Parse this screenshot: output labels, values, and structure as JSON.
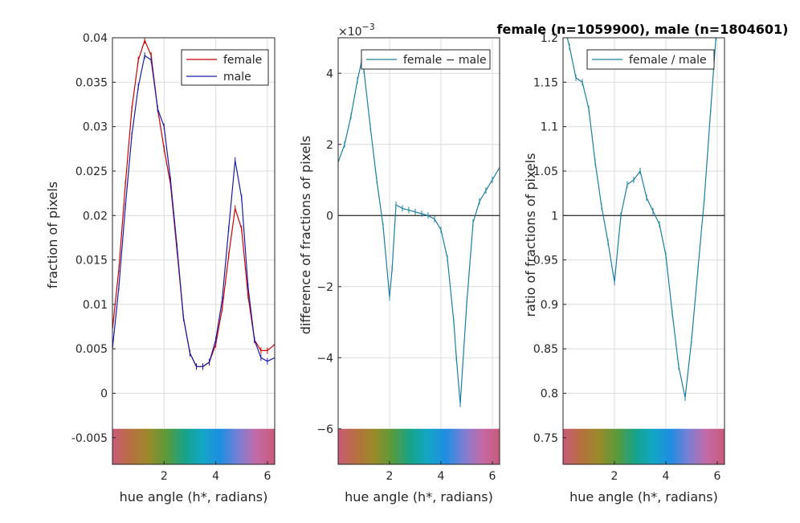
{
  "figure": {
    "title": "female (n=1059900), male (n=1804601)"
  },
  "colors": {
    "female": "#cc0000",
    "male": "#1a1aaa",
    "difference": "#1a7fa0",
    "zero_line": "#000000",
    "grid": "#dcdcdc"
  },
  "hue_strip_colors": [
    "#c95a7a",
    "#b7703f",
    "#9a8a2a",
    "#5b9a3a",
    "#17a387",
    "#13a6c6",
    "#1f8de2",
    "#7b7fd4",
    "#c46aa6",
    "#c95a7a"
  ],
  "chart_data": [
    {
      "type": "line",
      "xlabel": "hue angle (h*, radians)",
      "ylabel": "fraction of pixels",
      "xlim": [
        0,
        6.283
      ],
      "ylim": [
        -0.008,
        0.04
      ],
      "xticks": [
        2,
        4,
        6
      ],
      "xtick_labels": [
        "2",
        "4",
        "6"
      ],
      "yticks": [
        -0.005,
        0,
        0.005,
        0.01,
        0.015,
        0.02,
        0.025,
        0.03,
        0.035,
        0.04
      ],
      "ytick_labels": [
        "-0.005",
        "0",
        "0.005",
        "0.01",
        "0.015",
        "0.02",
        "0.025",
        "0.03",
        "0.035",
        "0.04"
      ],
      "grid": true,
      "legend_position": "top-right",
      "hue_strip_range": [
        -0.008,
        -0.004
      ],
      "x": [
        0.0,
        0.25,
        0.5,
        0.75,
        1.0,
        1.25,
        1.5,
        1.75,
        2.0,
        2.25,
        2.5,
        2.75,
        3.0,
        3.25,
        3.5,
        3.75,
        4.0,
        4.25,
        4.5,
        4.75,
        5.0,
        5.25,
        5.5,
        5.75,
        6.0,
        6.283
      ],
      "series": [
        {
          "name": "female",
          "values": [
            0.0072,
            0.014,
            0.0235,
            0.032,
            0.0375,
            0.0397,
            0.038,
            0.032,
            0.0275,
            0.0235,
            0.016,
            0.0085,
            0.0045,
            0.003,
            0.003,
            0.0035,
            0.0055,
            0.0095,
            0.0155,
            0.0208,
            0.0185,
            0.011,
            0.006,
            0.0048,
            0.0048,
            0.0055
          ]
        },
        {
          "name": "male",
          "values": [
            0.005,
            0.012,
            0.021,
            0.029,
            0.0345,
            0.038,
            0.0375,
            0.032,
            0.03,
            0.024,
            0.0165,
            0.0085,
            0.0045,
            0.003,
            0.003,
            0.0035,
            0.006,
            0.0105,
            0.0185,
            0.0262,
            0.022,
            0.012,
            0.006,
            0.004,
            0.0036,
            0.004
          ]
        }
      ]
    },
    {
      "type": "line",
      "xlabel": "hue angle (h*, radians)",
      "ylabel": "difference of fractions of pixels",
      "exponent_label": "×10",
      "exponent_power": "−3",
      "xlim": [
        0,
        6.283
      ],
      "ylim": [
        -7,
        5
      ],
      "xticks": [
        2,
        4,
        6
      ],
      "xtick_labels": [
        "2",
        "4",
        "6"
      ],
      "yticks": [
        -6,
        -4,
        -2,
        0,
        2,
        4
      ],
      "ytick_labels": [
        "−6",
        "−4",
        "−2",
        "0",
        "2",
        "4"
      ],
      "grid": true,
      "legend_position": "top-right",
      "hue_strip_range": [
        -7,
        -6
      ],
      "x": [
        0.0,
        0.25,
        0.5,
        0.75,
        0.9,
        1.0,
        1.25,
        1.5,
        1.75,
        2.0,
        2.1,
        2.25,
        2.5,
        2.75,
        3.0,
        3.25,
        3.5,
        3.75,
        4.0,
        4.25,
        4.5,
        4.6,
        4.75,
        5.0,
        5.25,
        5.5,
        5.75,
        6.0,
        6.283
      ],
      "series": [
        {
          "name": "female − male",
          "values": [
            1.5,
            2.0,
            2.8,
            3.8,
            4.3,
            4.1,
            2.5,
            1.0,
            -0.3,
            -2.3,
            -1.5,
            0.3,
            0.2,
            0.15,
            0.1,
            0.05,
            0.0,
            -0.1,
            -0.4,
            -1.2,
            -3.0,
            -4.0,
            -5.3,
            -2.5,
            -0.2,
            0.4,
            0.7,
            1.0,
            1.35
          ]
        }
      ]
    },
    {
      "type": "line",
      "xlabel": "hue angle (h*, radians)",
      "ylabel": "ratio of fractions of pixels",
      "xlim": [
        0,
        6.283
      ],
      "ylim": [
        0.72,
        1.2
      ],
      "xticks": [
        2,
        4,
        6
      ],
      "xtick_labels": [
        "2",
        "4",
        "6"
      ],
      "yticks": [
        0.75,
        0.8,
        0.85,
        0.9,
        0.95,
        1,
        1.05,
        1.1,
        1.15,
        1.2
      ],
      "ytick_labels": [
        "0.75",
        "0.8",
        "0.85",
        "0.9",
        "0.95",
        "1",
        "1.05",
        "1.1",
        "1.15",
        "1.2"
      ],
      "grid": true,
      "legend_position": "top-right",
      "hue_strip_range": [
        0.72,
        0.76
      ],
      "x": [
        0.0,
        0.25,
        0.5,
        0.75,
        1.0,
        1.25,
        1.5,
        1.75,
        2.0,
        2.25,
        2.5,
        2.75,
        3.0,
        3.25,
        3.5,
        3.75,
        4.0,
        4.25,
        4.5,
        4.75,
        5.0,
        5.25,
        5.5,
        5.75,
        5.95
      ],
      "series": [
        {
          "name": "female / male",
          "values": [
            1.22,
            1.19,
            1.155,
            1.15,
            1.12,
            1.06,
            1.01,
            0.97,
            0.925,
            1.0,
            1.035,
            1.04,
            1.05,
            1.02,
            1.005,
            0.99,
            0.955,
            0.89,
            0.83,
            0.795,
            0.86,
            0.94,
            1.02,
            1.12,
            1.2
          ]
        }
      ]
    }
  ]
}
